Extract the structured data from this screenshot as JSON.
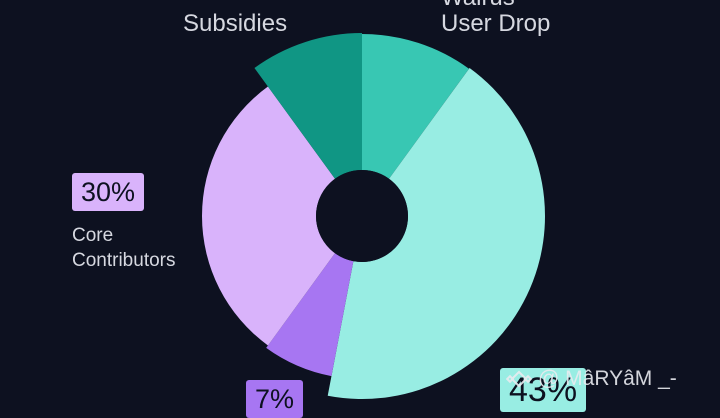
{
  "chart_data": {
    "type": "pie",
    "donut": true,
    "start_angle_deg": -90,
    "slices": [
      {
        "label": "Walrus User Drop",
        "value": 10,
        "color": "#38c7b3"
      },
      {
        "label": "",
        "value": 43,
        "color": "#98ede3"
      },
      {
        "label": "",
        "value": 7,
        "color": "#a776f2"
      },
      {
        "label": "Core Contributors",
        "value": 30,
        "color": "#d9b3fb"
      },
      {
        "label": "Subsidies",
        "value": 10,
        "color": "#109684"
      }
    ],
    "labels": {
      "subsidies": "Subsidies",
      "walrus_line1": "Walrus",
      "walrus_line2": "User Drop",
      "core_line1": "Core",
      "core_line2": "Contributors"
    },
    "percent_badges": {
      "core": "30%",
      "small": "7%",
      "large": "43%"
    },
    "badge_colors": {
      "core": "#d9b3fb",
      "small": "#a776f2",
      "large": "#98ede3"
    }
  },
  "watermark": {
    "text": "@ MâRYâM _-"
  }
}
